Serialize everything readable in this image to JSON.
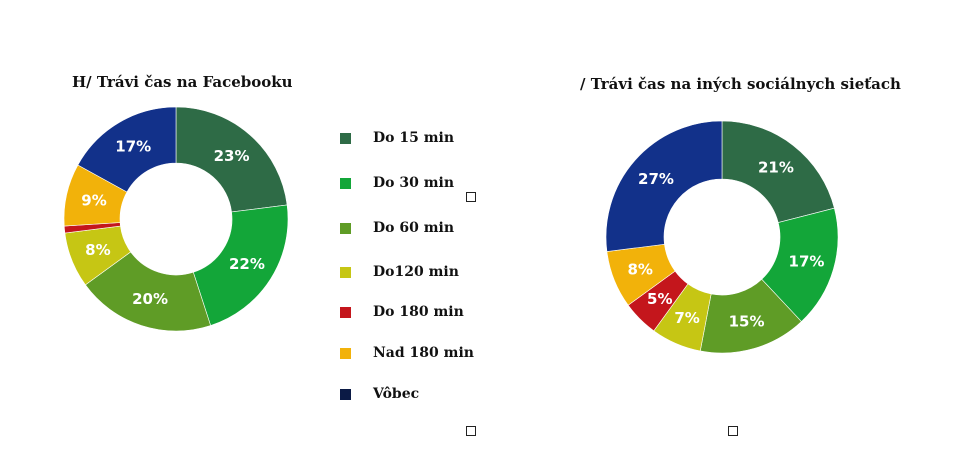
{
  "chart_data": [
    {
      "type": "pie",
      "title": "H/ Trávi čas na Facebooku",
      "categories": [
        "Do 15 min",
        "Do 30 min",
        "Do 60 min",
        "Do120 min",
        "Do 180 min",
        "Nad 180 min",
        "Vôbec"
      ],
      "values": [
        23,
        22,
        20,
        8,
        1,
        9,
        17
      ],
      "data_labels": [
        "23%",
        "22%",
        "20%",
        "8%",
        "",
        "9%",
        "17%"
      ],
      "colors": [
        "#2e6b46",
        "#13a639",
        "#5f9c26",
        "#c6c614",
        "#c4161c",
        "#f2b20a",
        "#12318a"
      ]
    },
    {
      "type": "pie",
      "title": "/ Trávi čas na iných sociálnych sieťach",
      "categories": [
        "Do 15 min",
        "Do 30 min",
        "Do 60 min",
        "Do120 min",
        "Do 180 min",
        "Nad 180 min",
        "Vôbec"
      ],
      "values": [
        21,
        17,
        15,
        7,
        5,
        8,
        27
      ],
      "data_labels": [
        "21%",
        "17%",
        "15%",
        "7%",
        "5%",
        "8%",
        "27%"
      ],
      "colors": [
        "#2e6b46",
        "#13a639",
        "#5f9c26",
        "#c6c614",
        "#c4161c",
        "#f2b20a",
        "#12318a"
      ]
    }
  ],
  "legend": {
    "items": [
      {
        "label": "Do 15 min",
        "color": "#2e6b46"
      },
      {
        "label": "Do 30 min",
        "color": "#13a639"
      },
      {
        "label": "Do 60 min",
        "color": "#5f9c26"
      },
      {
        "label": "Do120 min",
        "color": "#c6c614"
      },
      {
        "label": "Do 180 min",
        "color": "#c4161c"
      },
      {
        "label": "Nad 180 min",
        "color": "#f2b20a"
      },
      {
        "label": "Vôbec",
        "color": "#0b1a45"
      }
    ]
  }
}
